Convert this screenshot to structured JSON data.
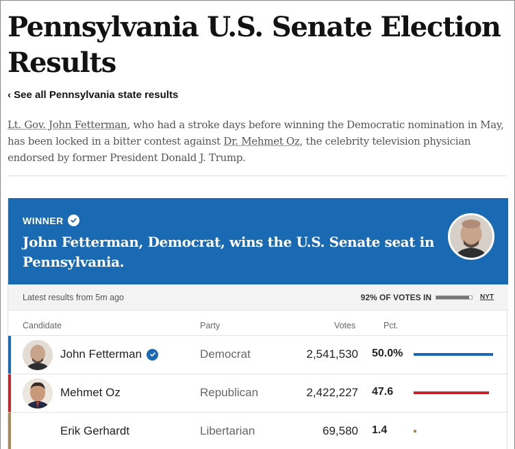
{
  "page": {
    "title": "Pennsylvania U.S. Senate Election Results",
    "back_link": "‹ See all Pennsylvania state results",
    "intro": {
      "link1": "Lt. Gov. John Fetterman",
      "text1": ", who had a stroke days before winning the Democratic nomination in May, has been locked in a bitter contest against ",
      "link2": "Dr. Mehmet Oz",
      "text2": ", the celebrity television physician endorsed by former President Donald J. Trump."
    }
  },
  "banner": {
    "label": "WINNER",
    "headline": "John Fetterman, Democrat, wins the U.S. Senate seat in Pennsylvania.",
    "color": "#1a6ab3"
  },
  "status": {
    "latest": "Latest results from 5m ago",
    "votes_in_label": "92% OF VOTES IN",
    "votes_in_fraction": 0.92,
    "source": "NYT"
  },
  "table": {
    "headers": {
      "candidate": "Candidate",
      "party": "Party",
      "votes": "Votes",
      "pct": "Pct."
    },
    "rows": [
      {
        "name": "John Fetterman",
        "party": "Democrat",
        "votes": "2,541,530",
        "pct": "50.0%",
        "share": 50.0,
        "color": "#1a6ab3",
        "winner": true,
        "photo": "fetterman-photo"
      },
      {
        "name": "Mehmet Oz",
        "party": "Republican",
        "votes": "2,422,227",
        "pct": "47.6",
        "share": 47.6,
        "color": "#c1272d",
        "winner": false,
        "photo": "oz-photo"
      },
      {
        "name": "Erik Gerhardt",
        "party": "Libertarian",
        "votes": "69,580",
        "pct": "1.4",
        "share": 1.4,
        "color": "#a98a5a",
        "winner": false,
        "photo": null
      }
    ]
  }
}
